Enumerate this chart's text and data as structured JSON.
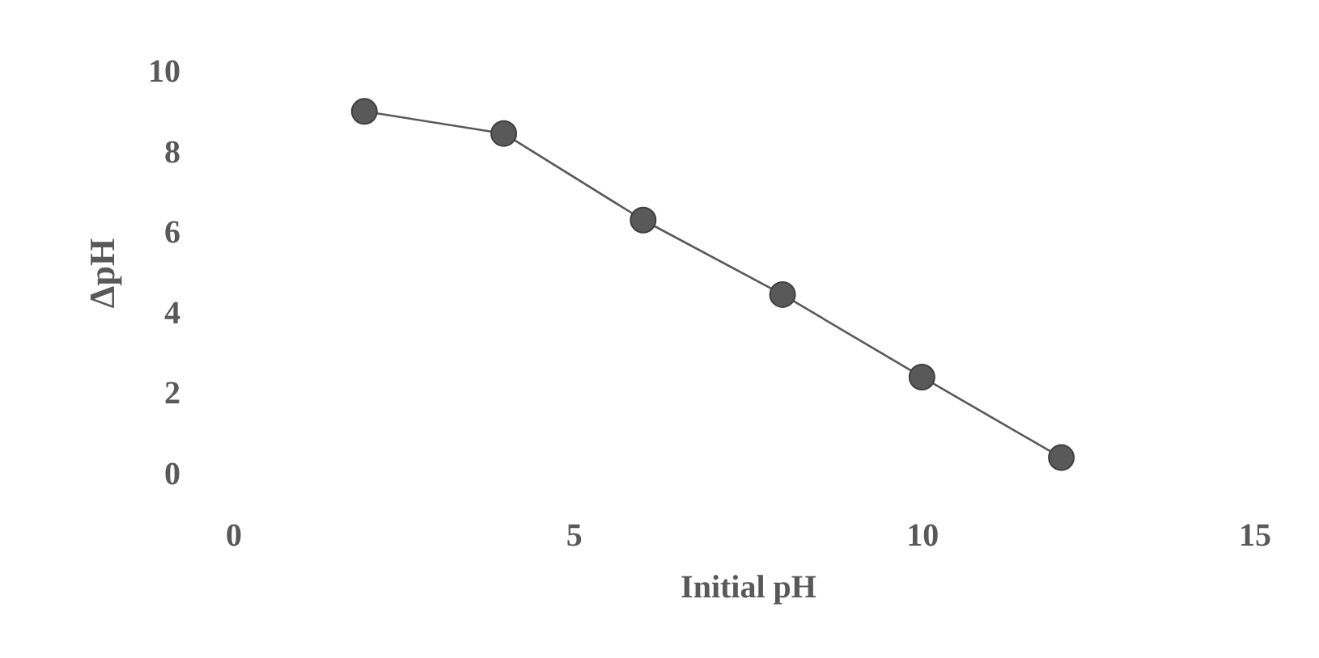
{
  "chart_data": {
    "type": "line",
    "xlabel": "Initial pH",
    "ylabel": "ΔpH",
    "x": [
      2,
      4,
      6,
      8,
      10,
      12
    ],
    "series": [
      {
        "color": "#595959",
        "values": [
          9.0,
          8.45,
          6.3,
          4.45,
          2.4,
          0.4
        ]
      }
    ],
    "xlim": [
      0,
      15
    ],
    "xticks": [
      0,
      5,
      10,
      15
    ],
    "ylim": [
      0,
      10
    ],
    "yticks": [
      0,
      2,
      4,
      6,
      8,
      10
    ],
    "marker": "circle",
    "line_style": "solid"
  }
}
